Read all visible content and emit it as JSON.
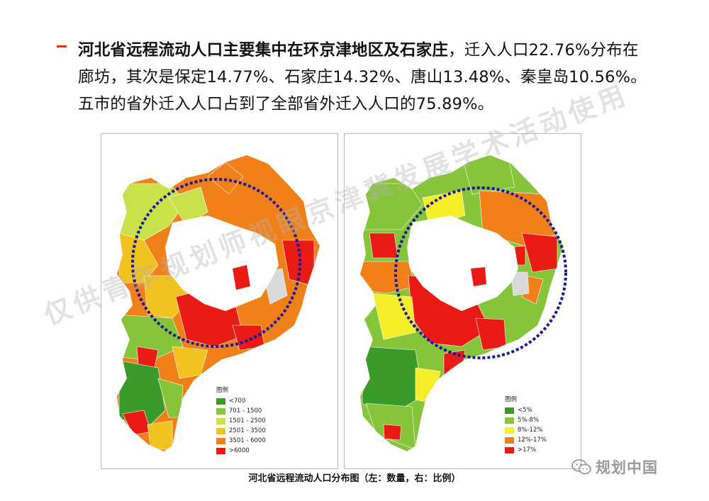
{
  "bullet": {
    "bold": "河北省远程流动人口主要集中在环京津地区及石家庄",
    "rest_line1": "，迁入人口22.76%分布在",
    "line2": "廊坊，其次是保定14.77%、石家庄14.32%、唐山13.48%、秦皇岛10.56%。",
    "line3": "五市的省外迁入人口占到了全部省外迁入人口的75.89%。"
  },
  "legend_left": {
    "title": "图例",
    "items": [
      {
        "label": "<700",
        "color": "#3a9a2a"
      },
      {
        "label": "701 - 1500",
        "color": "#86c43a"
      },
      {
        "label": "1501 - 2500",
        "color": "#c9e24a"
      },
      {
        "label": "2501 - 3500",
        "color": "#f2c21e"
      },
      {
        "label": "3501 - 6000",
        "color": "#f28018"
      },
      {
        "label": ">6000",
        "color": "#ea1a14"
      }
    ]
  },
  "legend_right": {
    "title": "图例",
    "items": [
      {
        "label": "<5%",
        "color": "#3a9a2a"
      },
      {
        "label": "5%-8%",
        "color": "#86c43a"
      },
      {
        "label": "8%-12%",
        "color": "#f5ef2a"
      },
      {
        "label": "12%-17%",
        "color": "#f28018"
      },
      {
        "label": ">17%",
        "color": "#ea1a14"
      }
    ]
  },
  "caption": "河北省远程流动人口分布图（左：数量，右：比例）",
  "watermark": "仅供青年规划师视眼京津冀发展学术活动使用",
  "brand": {
    "text": "规划中国",
    "icon": "wechat-icon"
  },
  "colors": {
    "accent_dash": "#d4380d",
    "circle": "#1a1a9a",
    "no_data": "#d9d9d9"
  }
}
